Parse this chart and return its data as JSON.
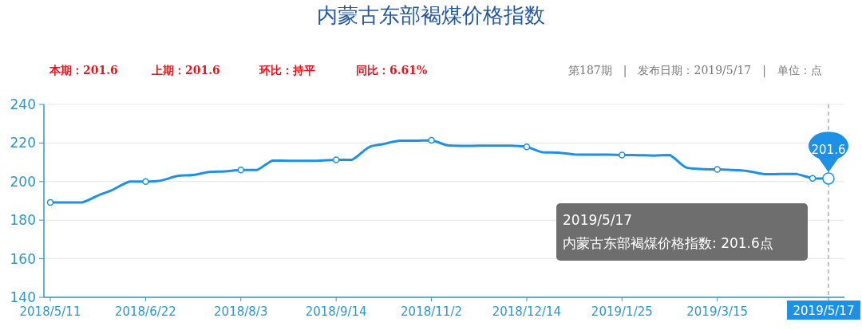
{
  "chart_data": {
    "type": "line",
    "title": "内蒙古东部褐煤价格指数",
    "annotations": [
      "本期：201.6",
      "上期：201.6",
      "环比：持平",
      "同比：6.61%",
      "第187期　|　发布日期：2019/5/17　|　单位：点",
      "2019/5/17",
      "内蒙古东部褐煤价格指数: 201.6点"
    ],
    "categories": [
      "2018/5/11",
      null,
      null,
      null,
      null,
      null,
      "2018/6/22",
      null,
      null,
      null,
      null,
      null,
      "2018/8/3",
      null,
      null,
      null,
      null,
      null,
      "2018/9/14",
      null,
      null,
      null,
      null,
      null,
      "2018/11/2",
      null,
      null,
      null,
      null,
      null,
      "2018/12/14",
      null,
      null,
      null,
      null,
      null,
      "2019/1/25",
      null,
      null,
      null,
      null,
      null,
      "2019/3/15",
      null,
      null,
      null,
      null,
      null,
      null,
      "2019/5/17"
    ],
    "series": [
      {
        "color": "#1e90e6",
        "values": [
          189.2,
          189.2,
          189.2,
          192.8,
          196,
          200,
          200,
          200.6,
          202.9,
          203.4,
          205,
          205.3,
          206,
          206,
          210.9,
          210.8,
          210.8,
          210.9,
          211.3,
          211.3,
          217.5,
          219.5,
          221.2,
          221.2,
          221.4,
          218.8,
          218.5,
          218.6,
          218.6,
          218.6,
          218,
          215.2,
          215,
          214.1,
          214,
          214,
          213.8,
          213.7,
          213.5,
          213.8,
          207.4,
          206.5,
          206.3,
          206,
          205.3,
          203.8,
          203.9,
          203.9,
          201.7,
          201.6
        ],
        "value_labels": [
          null,
          null,
          null,
          null,
          null,
          null,
          null,
          null,
          null,
          null,
          null,
          null,
          null,
          null,
          null,
          null,
          null,
          null,
          null,
          null,
          null,
          null,
          null,
          null,
          null,
          null,
          null,
          null,
          null,
          null,
          null,
          null,
          null,
          null,
          null,
          null,
          null,
          null,
          null,
          null,
          null,
          null,
          null,
          null,
          null,
          null,
          null,
          null,
          null,
          "201.6"
        ]
      }
    ],
    "ylim": [
      140,
      240
    ],
    "yticks": [
      140,
      160,
      180,
      200,
      220,
      240
    ],
    "grid": "y",
    "line_style": "solid"
  }
}
